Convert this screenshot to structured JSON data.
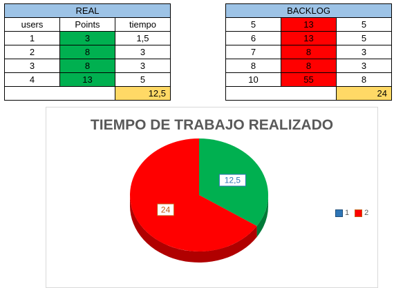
{
  "real_table": {
    "title": "REAL",
    "headers": [
      "users",
      "Points",
      "tiempo"
    ],
    "rows": [
      [
        "1",
        "3",
        "1,5"
      ],
      [
        "2",
        "8",
        "3"
      ],
      [
        "3",
        "8",
        "3"
      ],
      [
        "4",
        "13",
        "5"
      ]
    ],
    "total": "12,5"
  },
  "backlog_table": {
    "title": "BACKLOG",
    "rows": [
      [
        "5",
        "13",
        "5"
      ],
      [
        "6",
        "13",
        "5"
      ],
      [
        "7",
        "8",
        "3"
      ],
      [
        "8",
        "8",
        "3"
      ],
      [
        "10",
        "55",
        "8"
      ]
    ],
    "total": "24"
  },
  "colors": {
    "header_blue": "#9dc3e6",
    "green": "#00b050",
    "red": "#ff0000",
    "yellow": "#ffd966"
  },
  "chart_data": {
    "type": "pie",
    "title": "TIEMPO DE TRABAJO REALIZADO",
    "categories": [
      "1",
      "2"
    ],
    "values": [
      12.5,
      24
    ],
    "data_labels": [
      "12,5",
      "24"
    ],
    "colors": [
      "#00b050",
      "#ff0000"
    ],
    "legend": {
      "position": "right",
      "entries": [
        "1",
        "2"
      ],
      "swatch_colors": [
        "#2e75b6",
        "#c55a11"
      ]
    }
  }
}
